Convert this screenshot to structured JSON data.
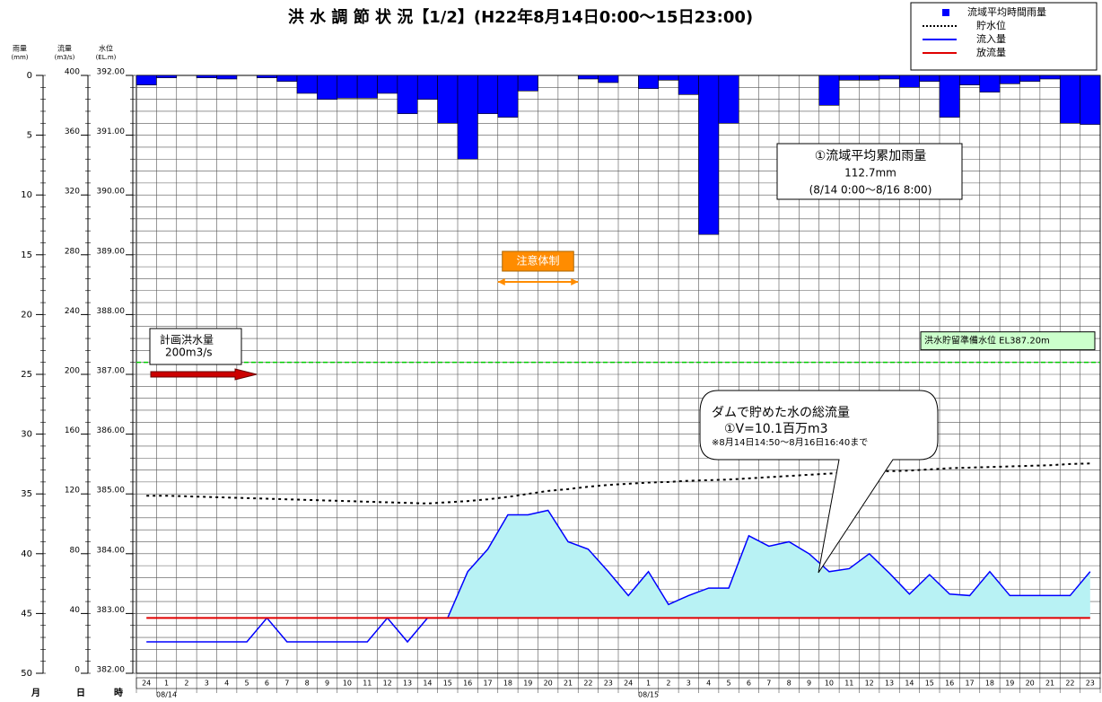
{
  "chart_data": {
    "type": "hydrograph",
    "title": "洪 水 調 節 状 況【1/2】(H22年8月14日0:00～15日23:00)",
    "axis_headers": [
      {
        "name": "雨量",
        "unit": "(mm)"
      },
      {
        "name": "流量",
        "unit": "(m3/s)"
      },
      {
        "name": "水位",
        "unit": "(EL.m)"
      }
    ],
    "bottom_headers": [
      "月",
      "日",
      "時"
    ],
    "date_labels": [
      "08/14",
      "08/15"
    ],
    "categories": [
      "24",
      "1",
      "2",
      "3",
      "4",
      "5",
      "6",
      "7",
      "8",
      "9",
      "10",
      "11",
      "12",
      "13",
      "14",
      "15",
      "16",
      "17",
      "18",
      "19",
      "20",
      "21",
      "22",
      "23",
      "24",
      "1",
      "2",
      "3",
      "4",
      "5",
      "6",
      "7",
      "8",
      "9",
      "10",
      "11",
      "12",
      "13",
      "14",
      "15",
      "16",
      "17",
      "18",
      "19",
      "20",
      "21",
      "22",
      "23"
    ],
    "ylim": [
      0,
      50
    ],
    "y_inverted": true,
    "yticks": [
      0,
      5,
      10,
      15,
      20,
      25,
      30,
      35,
      40,
      45,
      50
    ],
    "y2lim": [
      0,
      400
    ],
    "y2ticks": [
      400,
      360,
      320,
      280,
      240,
      200,
      160,
      120,
      80,
      40,
      0
    ],
    "y3lim": [
      382,
      392
    ],
    "y3ticks": [
      {
        "value": 392,
        "label": "392.00"
      },
      {
        "value": 391,
        "label": "391.00"
      },
      {
        "value": 390,
        "label": "390.00"
      },
      {
        "value": 389,
        "label": "389.00"
      },
      {
        "value": 388,
        "label": "388.00"
      },
      {
        "value": 387,
        "label": "387.00"
      },
      {
        "value": 386,
        "label": "386.00"
      },
      {
        "value": 385,
        "label": "385.00"
      },
      {
        "value": 384,
        "label": "384.00"
      },
      {
        "value": 383,
        "label": "383.00"
      },
      {
        "value": 382,
        "label": "382.00"
      }
    ],
    "grid": true,
    "minor_grid_step": 1,
    "series": [
      {
        "name": "流域平均時間雨量",
        "color": "#0000ff",
        "axis": "y",
        "style": "bar",
        "values": [
          0.8,
          0.2,
          0,
          0.2,
          0.3,
          0,
          0.2,
          0.5,
          1.5,
          2.0,
          1.9,
          1.9,
          1.5,
          3.2,
          2.0,
          4.0,
          7.0,
          3.2,
          3.5,
          1.3,
          0,
          0,
          0.3,
          0.6,
          0,
          1.1,
          0.4,
          1.6,
          13.3,
          4.0,
          0,
          0,
          0,
          0,
          2.5,
          0.4,
          0.4,
          0.3,
          1.0,
          0.5,
          3.5,
          0.8,
          1.4,
          0.7,
          0.5,
          0.3,
          4.0,
          4.1
        ]
      },
      {
        "name": "貯水位",
        "color": "#000000",
        "axis": "y3",
        "style": "dotted",
        "values": [
          384.97,
          384.97,
          384.96,
          384.95,
          384.94,
          384.93,
          384.92,
          384.91,
          384.9,
          384.89,
          384.88,
          384.87,
          384.86,
          384.85,
          384.84,
          384.86,
          384.88,
          384.91,
          384.95,
          385.0,
          385.05,
          385.08,
          385.12,
          385.15,
          385.17,
          385.19,
          385.2,
          385.22,
          385.23,
          385.24,
          385.26,
          385.28,
          385.3,
          385.32,
          385.34,
          385.36,
          385.37,
          385.38,
          385.39,
          385.41,
          385.43,
          385.44,
          385.45,
          385.46,
          385.47,
          385.48,
          385.5,
          385.51
        ]
      },
      {
        "name": "流入量",
        "color": "#0000ff",
        "axis": "y2",
        "style": "line",
        "values": [
          21,
          21,
          21,
          21,
          21,
          21,
          37,
          21,
          21,
          21,
          21,
          21,
          37,
          21,
          37,
          37,
          68,
          83,
          106,
          106,
          109,
          88,
          83,
          68,
          52,
          68,
          46,
          52,
          57,
          57,
          92,
          85,
          88,
          80,
          68,
          70,
          80,
          67,
          53,
          66,
          53,
          52,
          68,
          52,
          52,
          52,
          52,
          68
        ]
      },
      {
        "name": "放流量",
        "color": "#e00000",
        "axis": "y2",
        "style": "line",
        "values": [
          37,
          37,
          37,
          37,
          37,
          37,
          37,
          37,
          37,
          37,
          37,
          37,
          37,
          37,
          37,
          37,
          37,
          37,
          37,
          37,
          37,
          37,
          37,
          37,
          37,
          37,
          37,
          37,
          37,
          37,
          37,
          37,
          37,
          37,
          37,
          37,
          37,
          37,
          37,
          37,
          37,
          37,
          37,
          37,
          37,
          37,
          37,
          37
        ]
      }
    ],
    "reference_line": {
      "value": 387.2,
      "axis": "y3",
      "label": "洪水貯留準備水位 EL387.20m",
      "color": "#00cc00"
    },
    "plan_flood": {
      "value": 200,
      "axis": "y2",
      "lines": [
        "計画洪水量",
        "200m3/s"
      ],
      "color": "#cc0000"
    },
    "alert": {
      "label": "注意体制",
      "color": "#ff8c00",
      "from": 18,
      "to": 21
    },
    "rain_total": {
      "lines": [
        "①流域平均累加雨量",
        "112.7mm",
        "(8/14 0:00～8/16 8:00)"
      ]
    },
    "storage_callout": {
      "lines": [
        "ダムで貯めた水の総流量",
        "①V=10.1百万m3",
        "※8月14日14:50～8月16日16:40まで"
      ]
    }
  }
}
